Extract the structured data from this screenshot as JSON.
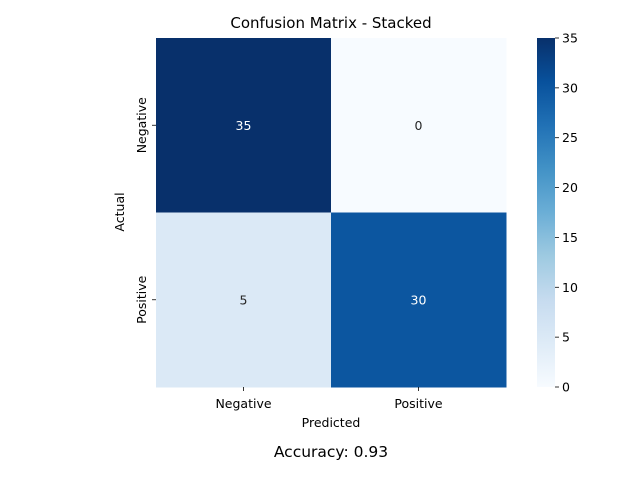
{
  "chart_data": {
    "type": "heatmap",
    "title": "Confusion Matrix - Stacked",
    "xlabel": "Predicted",
    "ylabel": "Actual",
    "x_categories": [
      "Negative",
      "Positive"
    ],
    "y_categories": [
      "Negative",
      "Positive"
    ],
    "values": [
      [
        35,
        0
      ],
      [
        5,
        30
      ]
    ],
    "colormap": "Blues",
    "vmin": 0,
    "vmax": 35,
    "colorbar_ticks": [
      0,
      5,
      10,
      15,
      20,
      25,
      30,
      35
    ],
    "annotation": "Accuracy: 0.93"
  }
}
